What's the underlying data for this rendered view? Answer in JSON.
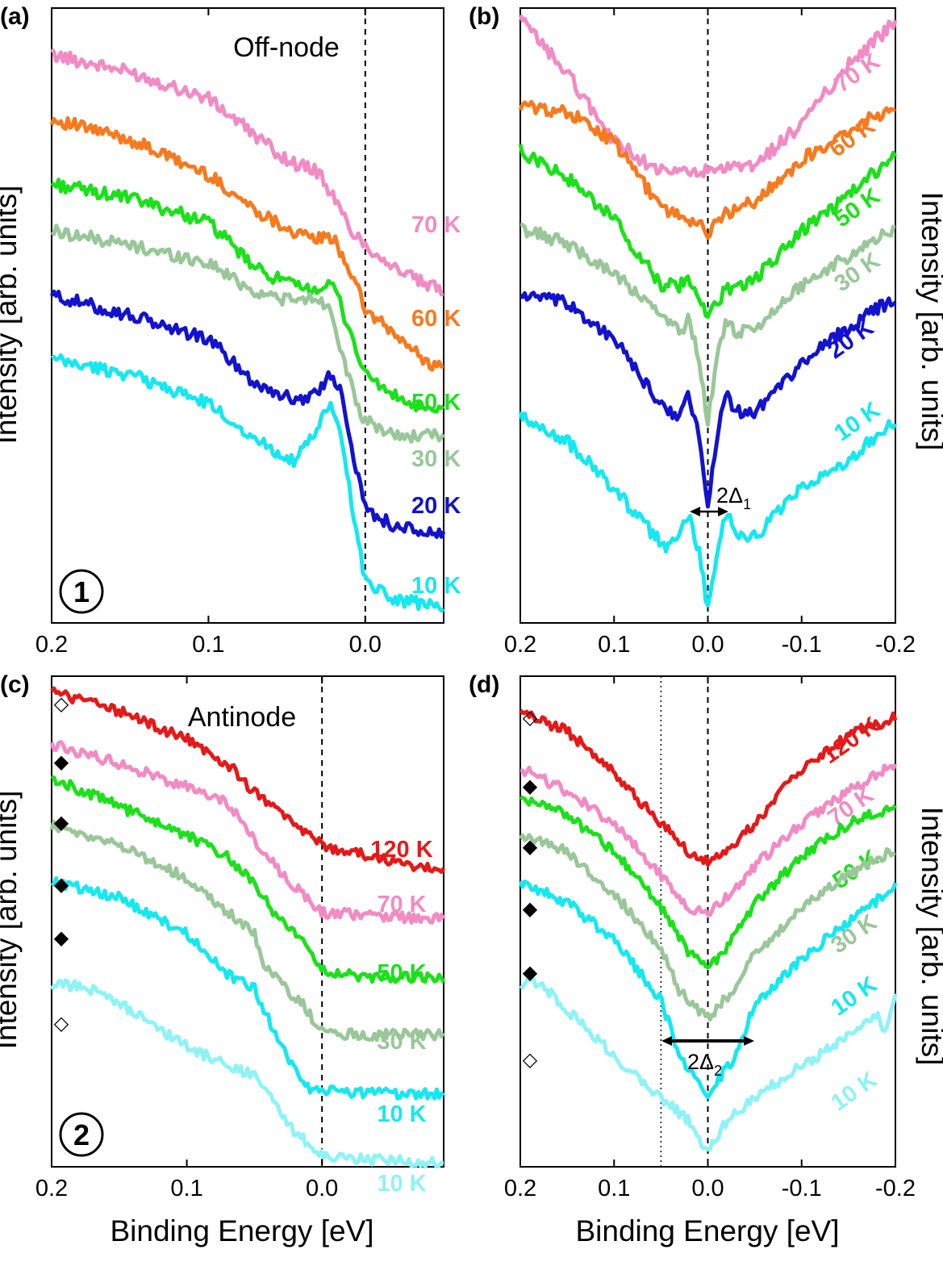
{
  "figure": {
    "shared_xlabel": "Binding Energy [eV]",
    "shared_ylabel": "Intensity [arb. units]"
  },
  "chart_data": [
    {
      "id": "a",
      "panel_label": "(a)",
      "type": "line",
      "annotation": "Off-node",
      "region_number": "1",
      "xlabel": "",
      "ylabel": "Intensity [arb. units]",
      "xlim": [
        0.2,
        -0.05
      ],
      "xticks": [
        0.2,
        0.1,
        0.0
      ],
      "xtick_labels": [
        "0.2",
        "0.1",
        "0.0"
      ],
      "ylim": [
        0,
        10
      ],
      "vline": 0.0,
      "series": [
        {
          "name": "70 K",
          "color": "#f28bc4",
          "x": [
            0.2,
            0.15,
            0.1,
            0.05,
            0.03,
            0.02,
            0.01,
            0.0,
            -0.02,
            -0.04,
            -0.05
          ],
          "y": [
            9.55,
            9.25,
            8.8,
            7.75,
            7.55,
            7.1,
            6.6,
            6.3,
            5.9,
            5.6,
            5.55
          ]
        },
        {
          "name": "60 K",
          "color": "#f77a1e",
          "x": [
            0.2,
            0.15,
            0.1,
            0.07,
            0.04,
            0.02,
            0.01,
            0.0,
            -0.02,
            -0.04,
            -0.05
          ],
          "y": [
            8.45,
            8.1,
            7.5,
            6.9,
            6.45,
            6.4,
            5.9,
            5.2,
            4.75,
            4.3,
            4.2
          ]
        },
        {
          "name": "50 K",
          "color": "#1be11b",
          "x": [
            0.2,
            0.15,
            0.1,
            0.07,
            0.04,
            0.02,
            0.01,
            0.0,
            -0.02,
            -0.04,
            -0.05
          ],
          "y": [
            7.35,
            7.1,
            6.7,
            5.9,
            5.55,
            5.6,
            4.85,
            4.1,
            3.7,
            3.45,
            3.5
          ]
        },
        {
          "name": "30 K",
          "color": "#99c799",
          "x": [
            0.2,
            0.15,
            0.1,
            0.07,
            0.045,
            0.03,
            0.022,
            0.015,
            0.005,
            0.0,
            -0.02,
            -0.05
          ],
          "y": [
            6.55,
            6.3,
            6.0,
            5.5,
            5.35,
            5.4,
            5.2,
            4.5,
            3.5,
            3.3,
            3.05,
            3.05
          ]
        },
        {
          "name": "20 K",
          "color": "#1212cf",
          "x": [
            0.2,
            0.15,
            0.1,
            0.07,
            0.045,
            0.03,
            0.022,
            0.015,
            0.005,
            0.0,
            -0.02,
            -0.05
          ],
          "y": [
            5.45,
            5.1,
            4.7,
            3.95,
            3.65,
            3.8,
            4.1,
            3.8,
            2.4,
            1.8,
            1.5,
            1.35
          ]
        },
        {
          "name": "10 K",
          "color": "#15e8f0",
          "x": [
            0.2,
            0.15,
            0.1,
            0.07,
            0.045,
            0.03,
            0.022,
            0.015,
            0.005,
            0.0,
            -0.02,
            -0.05
          ],
          "y": [
            4.35,
            4.1,
            3.6,
            3.0,
            2.6,
            3.2,
            3.6,
            3.0,
            1.3,
            0.6,
            0.25,
            0.15
          ]
        }
      ]
    },
    {
      "id": "b",
      "panel_label": "(b)",
      "type": "line",
      "annotation": "",
      "gap_label": "2Δ",
      "gap_sub": "1",
      "xlabel": "",
      "ylabel": "Intensity [arb. units]",
      "xlim": [
        0.2,
        -0.2
      ],
      "xticks": [
        0.2,
        0.1,
        0.0,
        -0.1,
        -0.2
      ],
      "xtick_labels": [
        "0.2",
        "0.1",
        "0.0",
        "-0.1",
        "-0.2"
      ],
      "ylim": [
        0,
        10
      ],
      "vline": 0.0,
      "series": [
        {
          "name": "70 K",
          "color": "#f28bc4",
          "x": [
            0.2,
            0.15,
            0.1,
            0.05,
            0.0,
            -0.05,
            -0.1,
            -0.15,
            -0.2
          ],
          "y": [
            9.95,
            9.05,
            7.9,
            7.4,
            7.4,
            7.5,
            8.2,
            9.2,
            9.9
          ]
        },
        {
          "name": "60 K",
          "color": "#f77a1e",
          "x": [
            0.2,
            0.15,
            0.1,
            0.05,
            0.02,
            0.0,
            -0.02,
            -0.05,
            -0.1,
            -0.15,
            -0.2
          ],
          "y": [
            8.5,
            8.4,
            7.9,
            6.8,
            6.6,
            6.4,
            6.7,
            6.9,
            7.6,
            8.1,
            8.5
          ]
        },
        {
          "name": "50 K",
          "color": "#1be11b",
          "x": [
            0.2,
            0.15,
            0.1,
            0.05,
            0.03,
            0.02,
            0.0,
            -0.02,
            -0.03,
            -0.05,
            -0.1,
            -0.15,
            -0.2
          ],
          "y": [
            7.75,
            7.3,
            6.6,
            5.5,
            5.5,
            5.6,
            4.95,
            5.45,
            5.5,
            5.6,
            6.4,
            7.0,
            7.7
          ]
        },
        {
          "name": "30 K",
          "color": "#99c799",
          "x": [
            0.2,
            0.15,
            0.1,
            0.05,
            0.03,
            0.02,
            0.01,
            0.0,
            -0.01,
            -0.02,
            -0.03,
            -0.05,
            -0.1,
            -0.15,
            -0.2
          ],
          "y": [
            6.45,
            6.2,
            5.7,
            5.0,
            4.7,
            4.95,
            4.3,
            3.25,
            4.3,
            4.95,
            4.7,
            4.8,
            5.5,
            6.0,
            6.45
          ]
        },
        {
          "name": "20 K",
          "color": "#1212cf",
          "x": [
            0.2,
            0.15,
            0.1,
            0.05,
            0.03,
            0.02,
            0.01,
            0.0,
            -0.01,
            -0.02,
            -0.03,
            -0.05,
            -0.1,
            -0.15,
            -0.2
          ],
          "y": [
            5.35,
            5.2,
            4.6,
            3.5,
            3.3,
            3.7,
            3.0,
            1.8,
            3.0,
            3.7,
            3.4,
            3.4,
            4.2,
            4.8,
            5.3
          ]
        },
        {
          "name": "10 K",
          "color": "#15e8f0",
          "x": [
            0.2,
            0.15,
            0.1,
            0.05,
            0.04,
            0.02,
            0.01,
            0.0,
            -0.01,
            -0.02,
            -0.04,
            -0.05,
            -0.1,
            -0.15,
            -0.2
          ],
          "y": [
            3.3,
            2.9,
            2.1,
            1.2,
            1.1,
            1.7,
            1.1,
            0.1,
            1.1,
            1.7,
            1.2,
            1.3,
            2.1,
            2.6,
            3.25
          ]
        }
      ]
    },
    {
      "id": "c",
      "panel_label": "(c)",
      "type": "line",
      "annotation": "Antinode",
      "region_number": "2",
      "xlabel": "Binding Energy [eV]",
      "ylabel": "Intensity [arb. units]",
      "xlim": [
        0.2,
        -0.09
      ],
      "xticks": [
        0.2,
        0.1,
        0.0
      ],
      "xtick_labels": [
        "0.2",
        "0.1",
        "0.0"
      ],
      "ylim": [
        0,
        10
      ],
      "vline": 0.0,
      "markers": [
        "◇",
        "◆",
        "◆",
        "◆",
        "◆",
        "◇"
      ],
      "series": [
        {
          "name": "120 K",
          "color": "#e51919",
          "x": [
            0.2,
            0.15,
            0.1,
            0.07,
            0.05,
            0.02,
            0.0,
            -0.03,
            -0.06,
            -0.09
          ],
          "y": [
            9.8,
            9.4,
            8.8,
            8.3,
            7.7,
            7.0,
            6.6,
            6.4,
            6.2,
            6.1
          ]
        },
        {
          "name": "70 K",
          "color": "#f28bc4",
          "x": [
            0.2,
            0.15,
            0.1,
            0.07,
            0.05,
            0.03,
            0.015,
            0.0,
            -0.03,
            -0.09
          ],
          "y": [
            8.7,
            8.3,
            7.8,
            7.5,
            6.7,
            6.0,
            5.6,
            5.2,
            5.15,
            5.05
          ]
        },
        {
          "name": "50 K",
          "color": "#1be11b",
          "x": [
            0.2,
            0.15,
            0.1,
            0.07,
            0.05,
            0.03,
            0.02,
            0.0,
            -0.03,
            -0.09
          ],
          "y": [
            8.0,
            7.4,
            6.8,
            6.35,
            5.8,
            5.0,
            4.8,
            4.0,
            3.85,
            3.85
          ]
        },
        {
          "name": "30 K",
          "color": "#99c799",
          "x": [
            0.2,
            0.15,
            0.1,
            0.07,
            0.05,
            0.045,
            0.03,
            0.015,
            0.0,
            -0.03,
            -0.09
          ],
          "y": [
            7.0,
            6.6,
            5.9,
            5.2,
            4.8,
            4.2,
            3.7,
            3.3,
            2.7,
            2.65,
            2.65
          ]
        },
        {
          "name": "10 K",
          "color": "#15e8f0",
          "x": [
            0.2,
            0.15,
            0.1,
            0.07,
            0.05,
            0.04,
            0.02,
            0.01,
            0.0,
            -0.03,
            -0.09
          ],
          "y": [
            5.85,
            5.5,
            4.75,
            3.9,
            3.6,
            3.0,
            1.9,
            1.55,
            1.5,
            1.45,
            1.4
          ]
        },
        {
          "name": "10 K",
          "color": "#8ef3f6",
          "x": [
            0.2,
            0.19,
            0.17,
            0.15,
            0.1,
            0.07,
            0.05,
            0.04,
            0.02,
            0.01,
            0.0,
            -0.03,
            -0.09
          ],
          "y": [
            3.6,
            3.7,
            3.6,
            3.3,
            2.4,
            2.0,
            1.8,
            1.4,
            0.6,
            0.4,
            0.15,
            0.05,
            0.0
          ]
        }
      ]
    },
    {
      "id": "d",
      "panel_label": "(d)",
      "type": "line",
      "annotation": "",
      "gap_label": "2Δ",
      "gap_sub": "2",
      "xlabel": "Binding Energy [eV]",
      "ylabel": "Intensity [arb. units]",
      "xlim": [
        0.2,
        -0.2
      ],
      "xticks": [
        0.2,
        0.1,
        0.0,
        -0.1,
        -0.2
      ],
      "xtick_labels": [
        "0.2",
        "0.1",
        "0.0",
        "-0.1",
        "-0.2"
      ],
      "ylim": [
        0,
        10
      ],
      "vline": 0.0,
      "vline_dotted": 0.05,
      "markers": [
        "◇",
        "◆",
        "◆",
        "◆",
        "◆",
        "◇"
      ],
      "series": [
        {
          "name": "120 K",
          "color": "#e51919",
          "x": [
            0.2,
            0.15,
            0.1,
            0.05,
            0.02,
            0.0,
            -0.02,
            -0.05,
            -0.1,
            -0.15,
            -0.2
          ],
          "y": [
            9.6,
            9.2,
            8.3,
            7.2,
            6.6,
            6.4,
            6.6,
            7.2,
            8.4,
            9.1,
            9.5
          ]
        },
        {
          "name": "70 K",
          "color": "#f28bc4",
          "x": [
            0.2,
            0.15,
            0.1,
            0.05,
            0.02,
            0.0,
            -0.02,
            -0.05,
            -0.1,
            -0.15,
            -0.2
          ],
          "y": [
            8.4,
            7.9,
            7.2,
            6.1,
            5.4,
            5.25,
            5.6,
            6.3,
            7.2,
            7.9,
            8.5
          ]
        },
        {
          "name": "50 K",
          "color": "#1be11b",
          "x": [
            0.2,
            0.15,
            0.1,
            0.05,
            0.02,
            0.0,
            -0.02,
            -0.05,
            -0.1,
            -0.15,
            -0.2
          ],
          "y": [
            7.8,
            7.4,
            6.6,
            5.4,
            4.4,
            4.1,
            4.5,
            5.5,
            6.5,
            7.2,
            7.6
          ]
        },
        {
          "name": "30 K",
          "color": "#99c799",
          "x": [
            0.2,
            0.15,
            0.1,
            0.05,
            0.03,
            0.0,
            -0.03,
            -0.05,
            -0.1,
            -0.15,
            -0.2
          ],
          "y": [
            6.95,
            6.6,
            5.7,
            4.5,
            3.6,
            3.0,
            3.7,
            4.4,
            5.4,
            6.1,
            6.65
          ]
        },
        {
          "name": "10 K",
          "color": "#15e8f0",
          "x": [
            0.2,
            0.15,
            0.1,
            0.05,
            0.03,
            0.0,
            -0.03,
            -0.05,
            -0.1,
            -0.15,
            -0.2
          ],
          "y": [
            5.95,
            5.5,
            4.7,
            3.4,
            2.2,
            1.4,
            2.2,
            3.3,
            4.3,
            5.1,
            5.85
          ]
        },
        {
          "name": "10 K",
          "color": "#8ef3f6",
          "x": [
            0.2,
            0.19,
            0.17,
            0.15,
            0.1,
            0.05,
            0.02,
            0.0,
            -0.02,
            -0.05,
            -0.1,
            -0.15,
            -0.18,
            -0.19,
            -0.2
          ],
          "y": [
            3.6,
            3.8,
            3.6,
            3.2,
            2.2,
            1.3,
            0.8,
            0.1,
            0.8,
            1.3,
            2.0,
            2.6,
            3.1,
            2.7,
            3.6
          ]
        }
      ]
    }
  ]
}
